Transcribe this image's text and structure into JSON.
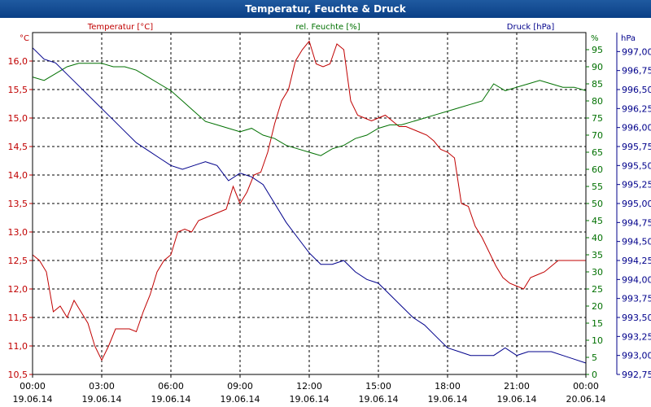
{
  "window": {
    "title": "Temperatur, Feuchte & Druck"
  },
  "colors": {
    "temperature": "#c00000",
    "humidity": "#007000",
    "pressure": "#00008b",
    "axis": "#000000",
    "title_bar": "#0a3f86"
  },
  "chart_data": {
    "type": "line",
    "title": "Temperatur, Feuchte & Druck",
    "grid": true,
    "xlabel": "",
    "x_ticks": [
      "00:00\n19.06.14",
      "03:00\n19.06.14",
      "06:00\n19.06.14",
      "09:00\n19.06.14",
      "12:00\n19.06.14",
      "15:00\n19.06.14",
      "18:00\n19.06.14",
      "21:00\n19.06.14",
      "00:00\n20.06.14"
    ],
    "x_ticks_time": [
      "00:00",
      "03:00",
      "06:00",
      "09:00",
      "12:00",
      "15:00",
      "18:00",
      "21:00",
      "00:00"
    ],
    "x_ticks_date": [
      "19.06.14",
      "19.06.14",
      "19.06.14",
      "19.06.14",
      "19.06.14",
      "19.06.14",
      "19.06.14",
      "19.06.14",
      "20.06.14"
    ],
    "xlim": [
      0,
      24
    ],
    "axes": {
      "left": {
        "label": "Temperatur [°C]",
        "unit": "°C",
        "ylim": [
          10.5,
          16.5
        ],
        "ticks": [
          "10,5",
          "11,0",
          "11,5",
          "12,0",
          "12,5",
          "13,0",
          "13,5",
          "14,0",
          "14,5",
          "15,0",
          "15,5",
          "16,0"
        ]
      },
      "middle": {
        "label": "rel. Feuchte [%]",
        "unit": "%",
        "ylim": [
          0,
          100
        ],
        "ticks": [
          "0",
          "5",
          "10",
          "15",
          "20",
          "25",
          "30",
          "35",
          "40",
          "45",
          "50",
          "55",
          "60",
          "65",
          "70",
          "75",
          "80",
          "85",
          "90",
          "95"
        ]
      },
      "right": {
        "label": "Druck [hPa]",
        "unit": "hPa",
        "ylim": [
          992.75,
          997.25
        ],
        "ticks": [
          "992,75",
          "993,00",
          "993,25",
          "993,50",
          "993,75",
          "994,00",
          "994,25",
          "994,50",
          "994,75",
          "995,00",
          "995,25",
          "995,50",
          "995,75",
          "996,00",
          "996,25",
          "996,50",
          "996,75",
          "997,00"
        ]
      }
    },
    "series": [
      {
        "name": "Temperatur [°C]",
        "axis": "left",
        "x": [
          0,
          0.3,
          0.6,
          0.9,
          1.2,
          1.5,
          1.8,
          2.1,
          2.4,
          2.7,
          3.0,
          3.3,
          3.6,
          3.9,
          4.2,
          4.5,
          4.8,
          5.1,
          5.4,
          5.7,
          6.0,
          6.3,
          6.6,
          6.9,
          7.2,
          7.5,
          7.8,
          8.1,
          8.4,
          8.7,
          9.0,
          9.3,
          9.6,
          9.9,
          10.2,
          10.5,
          10.8,
          11.1,
          11.4,
          11.7,
          12.0,
          12.3,
          12.6,
          12.9,
          13.2,
          13.5,
          13.8,
          14.1,
          14.4,
          14.7,
          15.0,
          15.3,
          15.6,
          15.9,
          16.2,
          16.5,
          16.8,
          17.1,
          17.4,
          17.7,
          18.0,
          18.3,
          18.6,
          18.9,
          19.2,
          19.5,
          19.8,
          20.1,
          20.4,
          20.7,
          21.0,
          21.3,
          21.6,
          21.9,
          22.2,
          22.5,
          22.8,
          23.1,
          23.4,
          23.7,
          24.0
        ],
        "values": [
          12.6,
          12.5,
          12.3,
          11.6,
          11.7,
          11.5,
          11.8,
          11.6,
          11.4,
          11.0,
          10.75,
          11.0,
          11.3,
          11.3,
          11.3,
          11.25,
          11.6,
          11.9,
          12.3,
          12.5,
          12.6,
          13.0,
          13.05,
          13.0,
          13.2,
          13.25,
          13.3,
          13.35,
          13.4,
          13.8,
          13.5,
          13.7,
          14.0,
          14.05,
          14.4,
          14.9,
          15.3,
          15.5,
          16.0,
          16.2,
          16.35,
          15.95,
          15.9,
          15.95,
          16.3,
          16.2,
          15.3,
          15.05,
          15.0,
          14.95,
          15.0,
          15.05,
          14.95,
          14.85,
          14.85,
          14.8,
          14.75,
          14.7,
          14.6,
          14.45,
          14.4,
          14.3,
          13.5,
          13.45,
          13.1,
          12.9,
          12.65,
          12.4,
          12.2,
          12.1,
          12.05,
          12.0,
          12.2,
          12.25,
          12.3,
          12.4,
          12.5,
          12.5,
          12.5,
          12.5,
          12.5
        ]
      },
      {
        "name": "rel. Feuchte [%]",
        "axis": "middle",
        "x": [
          0,
          0.5,
          1.0,
          1.5,
          2.0,
          2.5,
          3.0,
          3.5,
          4.0,
          4.5,
          5.0,
          5.5,
          6.0,
          6.5,
          7.0,
          7.5,
          8.0,
          8.5,
          9.0,
          9.5,
          10.0,
          10.5,
          11.0,
          11.5,
          12.0,
          12.5,
          13.0,
          13.5,
          14.0,
          14.5,
          15.0,
          15.5,
          16.0,
          16.5,
          17.0,
          17.5,
          18.0,
          18.5,
          19.0,
          19.5,
          20.0,
          20.5,
          21.0,
          21.5,
          22.0,
          22.5,
          23.0,
          23.5,
          24.0
        ],
        "values": [
          87,
          86,
          88,
          90,
          91,
          91,
          91,
          90,
          90,
          89,
          87,
          85,
          83,
          80,
          77,
          74,
          73,
          72,
          71,
          72,
          70,
          69,
          67,
          66,
          65,
          64,
          66,
          67,
          69,
          70,
          72,
          73,
          73,
          74,
          75,
          76,
          77,
          78,
          79,
          80,
          85,
          83,
          84,
          85,
          86,
          85,
          84,
          84,
          83
        ]
      },
      {
        "name": "Druck [hPa]",
        "axis": "right",
        "x": [
          0,
          0.5,
          1.0,
          1.5,
          2.0,
          2.5,
          3.0,
          3.5,
          4.0,
          4.5,
          5.0,
          5.5,
          6.0,
          6.5,
          7.0,
          7.5,
          8.0,
          8.5,
          9.0,
          9.5,
          10.0,
          10.5,
          11.0,
          11.5,
          12.0,
          12.5,
          13.0,
          13.5,
          14.0,
          14.5,
          15.0,
          15.5,
          16.0,
          16.5,
          17.0,
          17.5,
          18.0,
          18.5,
          19.0,
          19.5,
          20.0,
          20.5,
          21.0,
          21.5,
          22.0,
          22.5,
          23.0,
          23.5,
          24.0
        ],
        "values": [
          997.05,
          996.9,
          996.85,
          996.7,
          996.55,
          996.4,
          996.25,
          996.1,
          995.95,
          995.8,
          995.7,
          995.6,
          995.5,
          995.45,
          995.5,
          995.55,
          995.5,
          995.3,
          995.4,
          995.35,
          995.25,
          995.0,
          994.75,
          994.55,
          994.35,
          994.2,
          994.2,
          994.25,
          994.1,
          994.0,
          993.95,
          993.8,
          993.65,
          993.5,
          993.4,
          993.25,
          993.1,
          993.05,
          993.0,
          993.0,
          993.0,
          993.1,
          993.0,
          993.05,
          993.05,
          993.05,
          993.0,
          992.95,
          992.9
        ]
      }
    ]
  }
}
